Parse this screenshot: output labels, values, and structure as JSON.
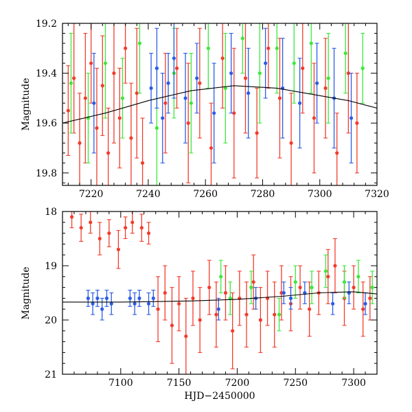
{
  "chart_data": [
    {
      "type": "scatter",
      "panel": "top",
      "title": "",
      "xlabel": "",
      "ylabel": "Magnitude",
      "xlim": [
        7210,
        7320
      ],
      "ylim": [
        19.85,
        19.2
      ],
      "y_inverted": true,
      "x_ticks": [
        7220,
        7240,
        7260,
        7280,
        7300,
        7320
      ],
      "x_tick_labels": [
        "7220",
        "7240",
        "7260",
        "7280",
        "7300",
        "7320"
      ],
      "y_ticks": [
        19.2,
        19.4,
        19.6,
        19.8
      ],
      "y_tick_labels": [
        "19.2",
        "19.4",
        "19.6",
        "19.8"
      ],
      "series": [
        {
          "name": "red",
          "color": "#f23c2c",
          "points": [
            [
              7212,
              19.55
            ],
            [
              7214,
              19.42
            ],
            [
              7216,
              19.68
            ],
            [
              7218,
              19.5
            ],
            [
              7220,
              19.36
            ],
            [
              7222,
              19.62
            ],
            [
              7224,
              19.45
            ],
            [
              7226,
              19.72
            ],
            [
              7228,
              19.4
            ],
            [
              7230,
              19.58
            ],
            [
              7232,
              19.3
            ],
            [
              7234,
              19.66
            ],
            [
              7236,
              19.48
            ],
            [
              7238,
              19.76
            ],
            [
              7246,
              19.52
            ],
            [
              7250,
              19.38
            ],
            [
              7254,
              19.6
            ],
            [
              7258,
              19.44
            ],
            [
              7262,
              19.7
            ],
            [
              7266,
              19.34
            ],
            [
              7270,
              19.56
            ],
            [
              7274,
              19.42
            ],
            [
              7278,
              19.64
            ],
            [
              7282,
              19.3
            ],
            [
              7286,
              19.5
            ],
            [
              7290,
              19.68
            ],
            [
              7294,
              19.38
            ],
            [
              7298,
              19.58
            ],
            [
              7302,
              19.46
            ],
            [
              7306,
              19.72
            ],
            [
              7310,
              19.4
            ],
            [
              7313,
              19.6
            ]
          ],
          "errors": [
            0.18,
            0.22,
            0.2,
            0.26,
            0.16,
            0.24,
            0.2,
            0.18,
            0.28,
            0.2,
            0.14,
            0.22,
            0.26,
            0.18,
            0.2,
            0.16,
            0.24,
            0.22,
            0.18,
            0.2,
            0.26,
            0.22,
            0.18,
            0.16,
            0.24,
            0.2,
            0.18,
            0.22,
            0.2,
            0.16,
            0.24,
            0.2
          ]
        },
        {
          "name": "green",
          "color": "#3ce83c",
          "points": [
            [
              7213,
              19.44
            ],
            [
              7219,
              19.58
            ],
            [
              7225,
              19.36
            ],
            [
              7231,
              19.5
            ],
            [
              7237,
              19.28
            ],
            [
              7243,
              19.62
            ],
            [
              7249,
              19.4
            ],
            [
              7255,
              19.52
            ],
            [
              7261,
              19.3
            ],
            [
              7267,
              19.46
            ],
            [
              7273,
              19.26
            ],
            [
              7279,
              19.4
            ],
            [
              7285,
              19.3
            ],
            [
              7291,
              19.36
            ],
            [
              7297,
              19.28
            ],
            [
              7303,
              19.42
            ],
            [
              7309,
              19.32
            ],
            [
              7315,
              19.38
            ]
          ],
          "errors": [
            0.2,
            0.18,
            0.22,
            0.16,
            0.2,
            0.24,
            0.18,
            0.2,
            0.16,
            0.22,
            0.14,
            0.2,
            0.18,
            0.16,
            0.2,
            0.18,
            0.16,
            0.14
          ]
        },
        {
          "name": "blue",
          "color": "#2b5ce6",
          "points": [
            [
              7221,
              19.52
            ],
            [
              7241,
              19.46
            ],
            [
              7243,
              19.38
            ],
            [
              7245,
              19.58
            ],
            [
              7247,
              19.44
            ],
            [
              7249,
              19.34
            ],
            [
              7253,
              19.5
            ],
            [
              7257,
              19.42
            ],
            [
              7263,
              19.56
            ],
            [
              7269,
              19.4
            ],
            [
              7275,
              19.48
            ],
            [
              7281,
              19.36
            ],
            [
              7287,
              19.46
            ],
            [
              7293,
              19.52
            ],
            [
              7299,
              19.44
            ],
            [
              7305,
              19.5
            ],
            [
              7311,
              19.58
            ]
          ],
          "errors": [
            0.2,
            0.14,
            0.16,
            0.18,
            0.12,
            0.16,
            0.18,
            0.14,
            0.2,
            0.16,
            0.18,
            0.14,
            0.2,
            0.18,
            0.16,
            0.2,
            0.18
          ]
        }
      ],
      "model_curve": {
        "name": "model",
        "color": "#000000",
        "x": [
          7210,
          7225,
          7240,
          7255,
          7270,
          7285,
          7300,
          7310,
          7320
        ],
        "y": [
          19.6,
          19.56,
          19.51,
          19.47,
          19.45,
          19.46,
          19.49,
          19.51,
          19.54
        ]
      }
    },
    {
      "type": "scatter",
      "panel": "bottom",
      "title": "",
      "xlabel": "HJD−2450000",
      "ylabel": "Magnitude",
      "xlim": [
        7050,
        7320
      ],
      "ylim": [
        21,
        18
      ],
      "y_inverted": true,
      "x_ticks": [
        7100,
        7150,
        7200,
        7250,
        7300
      ],
      "x_tick_labels": [
        "7100",
        "7150",
        "7200",
        "7250",
        "7300"
      ],
      "y_ticks": [
        18,
        19,
        20,
        21
      ],
      "y_tick_labels": [
        "18",
        "19",
        "20",
        "21"
      ],
      "series": [
        {
          "name": "red",
          "color": "#f23c2c",
          "points": [
            [
              7058,
              18.1
            ],
            [
              7066,
              18.3
            ],
            [
              7074,
              18.2
            ],
            [
              7082,
              18.5
            ],
            [
              7090,
              18.4
            ],
            [
              7098,
              18.7
            ],
            [
              7104,
              18.3
            ],
            [
              7110,
              18.2
            ],
            [
              7118,
              18.3
            ],
            [
              7124,
              18.4
            ],
            [
              7132,
              19.8
            ],
            [
              7138,
              19.5
            ],
            [
              7144,
              20.1
            ],
            [
              7150,
              19.7
            ],
            [
              7156,
              20.3
            ],
            [
              7162,
              19.6
            ],
            [
              7168,
              20.0
            ],
            [
              7176,
              19.4
            ],
            [
              7182,
              19.9
            ],
            [
              7190,
              19.5
            ],
            [
              7196,
              20.2
            ],
            [
              7202,
              19.6
            ],
            [
              7208,
              19.9
            ],
            [
              7214,
              19.3
            ],
            [
              7220,
              20.0
            ],
            [
              7226,
              19.6
            ],
            [
              7232,
              19.9
            ],
            [
              7238,
              19.5
            ],
            [
              7246,
              19.7
            ],
            [
              7254,
              19.4
            ],
            [
              7262,
              19.8
            ],
            [
              7270,
              19.5
            ],
            [
              7278,
              19.2
            ],
            [
              7284,
              19.0
            ],
            [
              7292,
              19.6
            ],
            [
              7300,
              19.4
            ],
            [
              7308,
              19.8
            ],
            [
              7314,
              19.6
            ]
          ],
          "errors": [
            0.2,
            0.25,
            0.2,
            0.3,
            0.25,
            0.35,
            0.2,
            0.2,
            0.25,
            0.2,
            0.6,
            0.5,
            0.7,
            0.5,
            0.7,
            0.5,
            0.6,
            0.5,
            0.6,
            0.5,
            0.7,
            0.5,
            0.6,
            0.5,
            0.6,
            0.5,
            0.6,
            0.5,
            0.5,
            0.4,
            0.5,
            0.4,
            0.5,
            0.5,
            0.5,
            0.4,
            0.5,
            0.4
          ]
        },
        {
          "name": "green",
          "color": "#3ce83c",
          "points": [
            [
              7186,
              19.2
            ],
            [
              7194,
              19.6
            ],
            [
              7212,
              19.4
            ],
            [
              7236,
              19.9
            ],
            [
              7250,
              19.3
            ],
            [
              7264,
              19.4
            ],
            [
              7276,
              19.1
            ],
            [
              7292,
              19.3
            ],
            [
              7304,
              19.2
            ],
            [
              7316,
              19.4
            ]
          ],
          "errors": [
            0.3,
            0.3,
            0.3,
            0.3,
            0.3,
            0.3,
            0.3,
            0.3,
            0.3,
            0.3
          ]
        },
        {
          "name": "blue",
          "color": "#2b5ce6",
          "points": [
            [
              7072,
              19.6
            ],
            [
              7076,
              19.7
            ],
            [
              7080,
              19.6
            ],
            [
              7084,
              19.8
            ],
            [
              7088,
              19.6
            ],
            [
              7092,
              19.7
            ],
            [
              7108,
              19.6
            ],
            [
              7112,
              19.7
            ],
            [
              7116,
              19.6
            ],
            [
              7124,
              19.7
            ],
            [
              7128,
              19.6
            ],
            [
              7184,
              19.8
            ],
            [
              7216,
              19.6
            ],
            [
              7240,
              19.5
            ],
            [
              7246,
              19.6
            ],
            [
              7258,
              19.5
            ],
            [
              7282,
              19.7
            ],
            [
              7296,
              19.5
            ],
            [
              7310,
              19.7
            ]
          ],
          "errors": [
            0.15,
            0.2,
            0.15,
            0.2,
            0.15,
            0.2,
            0.15,
            0.2,
            0.15,
            0.2,
            0.15,
            0.2,
            0.2,
            0.2,
            0.2,
            0.2,
            0.2,
            0.2,
            0.2
          ]
        }
      ],
      "model_curve": {
        "name": "model",
        "color": "#000000",
        "x": [
          7050,
          7100,
          7130,
          7160,
          7200,
          7240,
          7270,
          7300,
          7320
        ],
        "y": [
          19.67,
          19.67,
          19.66,
          19.65,
          19.62,
          19.56,
          19.5,
          19.48,
          19.52
        ]
      }
    }
  ]
}
